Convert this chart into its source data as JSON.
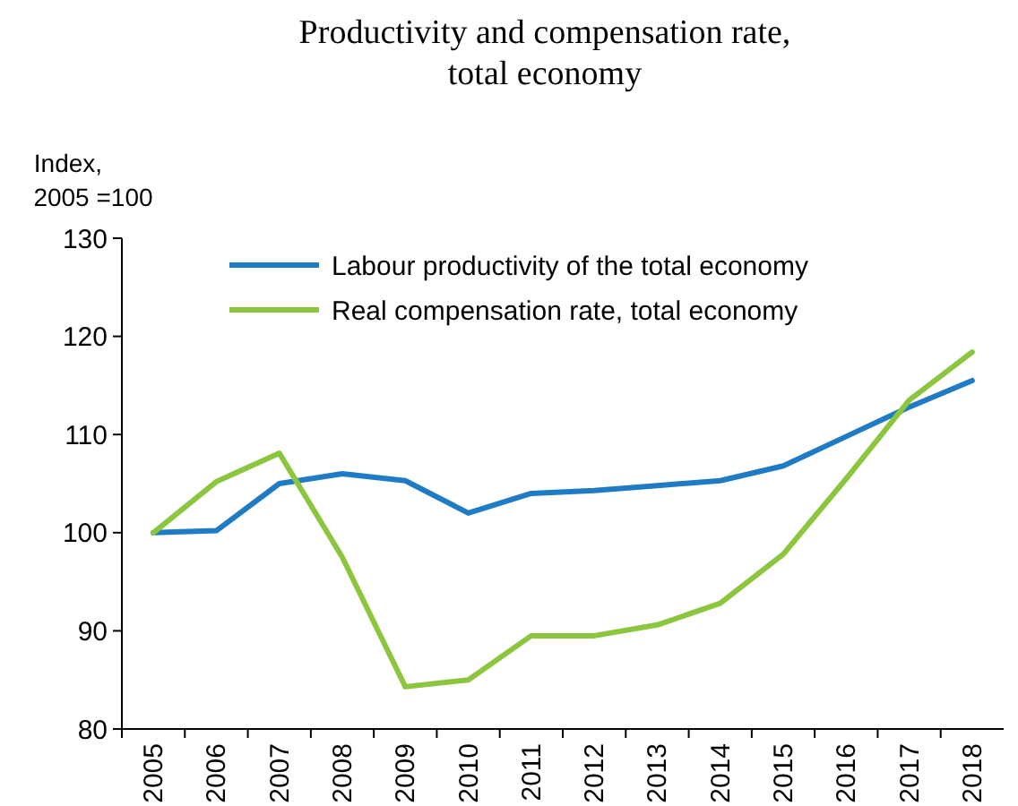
{
  "chart_data": {
    "type": "line",
    "title": "Productivity and compensation rate, total economy",
    "ylabel": "Index, 2005 =100",
    "categories": [
      "2005",
      "2006",
      "2007",
      "2008",
      "2009",
      "2010",
      "2011",
      "2012",
      "2013",
      "2014",
      "2015",
      "2016",
      "2017",
      "2018"
    ],
    "series": [
      {
        "name": "Labour productivity of the total economy",
        "color": "#1f7bc4",
        "values": [
          100,
          100.2,
          105,
          106,
          105.3,
          102,
          104,
          104.3,
          104.8,
          105.3,
          106.8,
          109.8,
          112.8,
          115.5
        ]
      },
      {
        "name": "Real compensation rate, total economy",
        "color": "#8cc63f",
        "values": [
          100,
          105.2,
          108.1,
          97.5,
          84.3,
          85,
          89.5,
          89.5,
          90.6,
          92.8,
          97.8,
          105.5,
          113.5,
          118.4
        ]
      }
    ],
    "ylim": [
      80,
      130
    ],
    "yticks": [
      80,
      90,
      100,
      110,
      120,
      130
    ],
    "grid": false,
    "legend": "top left",
    "marker": "none",
    "line_style": "solid"
  }
}
